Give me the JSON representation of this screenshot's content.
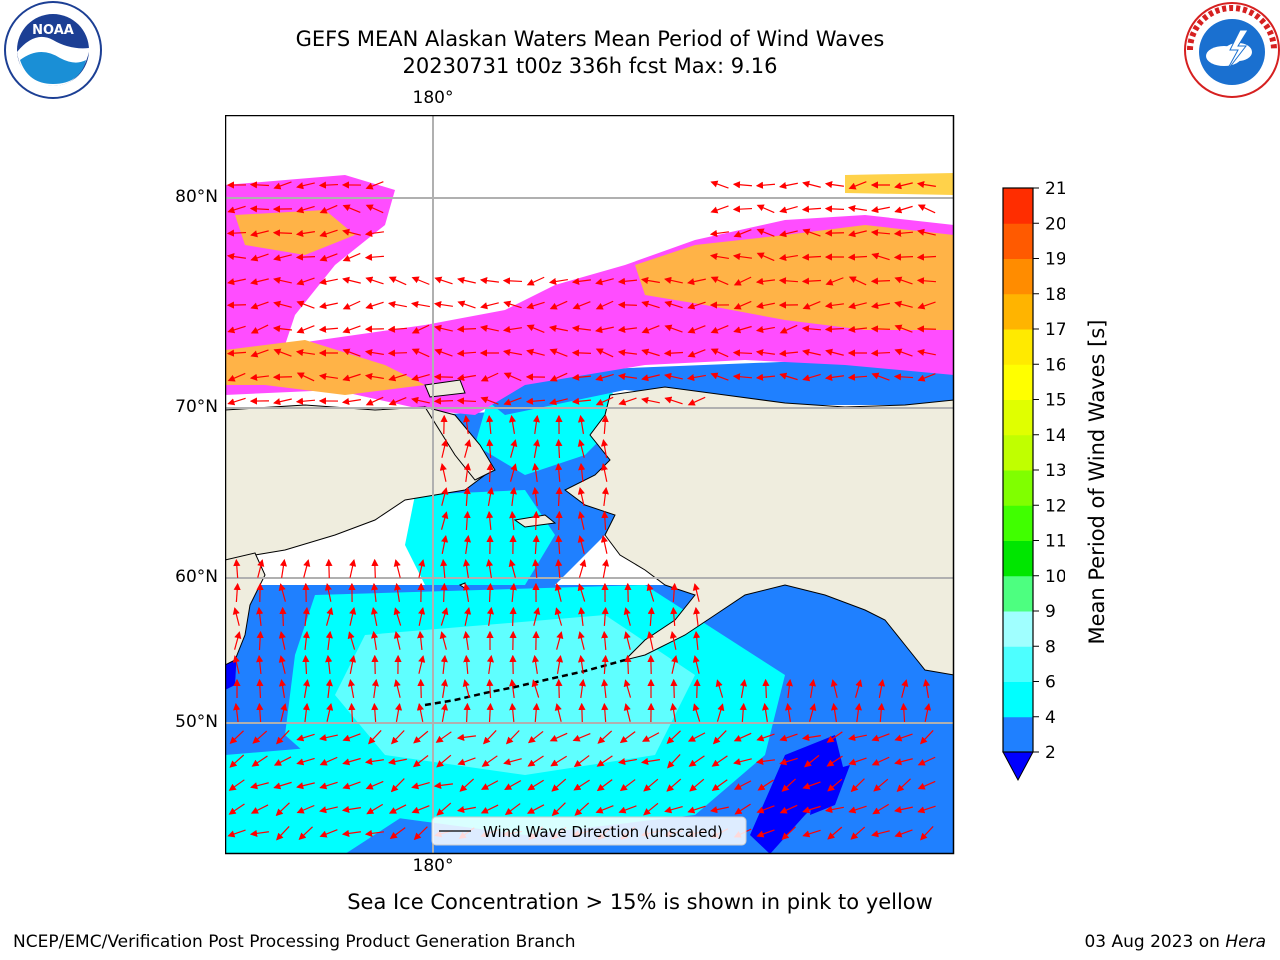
{
  "title": {
    "line1": "GEFS MEAN Alaskan Waters Mean Period of Wind Waves",
    "line2": "20230731 t00z 336h fcst   Max: 9.16"
  },
  "map": {
    "lon_top_label": "180°",
    "lon_bottom_label": "180°",
    "lat_labels": [
      "80°N",
      "70°N",
      "60°N",
      "50°N"
    ],
    "legend_label": "Wind Wave Direction (unscaled)",
    "colors": {
      "land": "#efedde",
      "water_low": "#1f80ff",
      "water_mid": "#00ffff",
      "water_light": "#5fffff",
      "deep_blue": "#0000ff",
      "ice_pink": "#ff4dff",
      "ice_orange": "#ffb347",
      "ice_yellow": "#ffd24a",
      "arrow": "#ff0000",
      "grid": "#b0b0b0"
    }
  },
  "colorbar": {
    "label": "Mean Period of Wind Waves [s]",
    "ticks": [
      "2",
      "4",
      "6",
      "8",
      "9",
      "10",
      "11",
      "12",
      "13",
      "14",
      "15",
      "16",
      "17",
      "18",
      "19",
      "20",
      "21"
    ],
    "colors": [
      "#1f80ff",
      "#00ffff",
      "#4dffff",
      "#a0ffff",
      "#4dff80",
      "#00e600",
      "#40ff00",
      "#80ff00",
      "#c0ff00",
      "#e0ff00",
      "#ffff00",
      "#ffea00",
      "#ffb400",
      "#ff8c00",
      "#ff5a00",
      "#ff2d00"
    ],
    "under_color": "#0000ff"
  },
  "notes": {
    "ice": "Sea Ice Concentration > 15% is shown in pink to yellow"
  },
  "footer": {
    "left": "NCEP/EMC/Verification Post Processing Product Generation Branch",
    "right_date": "03 Aug 2023 on ",
    "right_host": "Hera"
  },
  "logos": {
    "noaa_text": "NOAA",
    "nws_text": "NATIONAL WEATHER SERVICE"
  }
}
